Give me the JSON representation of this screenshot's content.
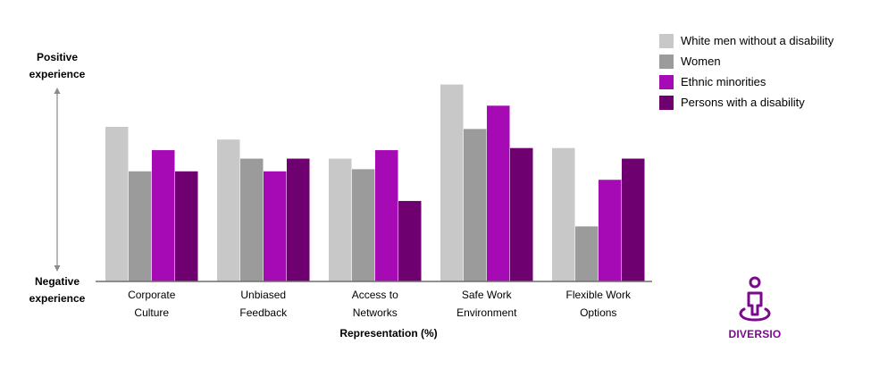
{
  "chart_data": {
    "type": "bar",
    "title": "",
    "xlabel": "Representation (%)",
    "ylabel_top": "Positive experience",
    "ylabel_bottom": "Negative experience",
    "categories": [
      [
        "Corporate",
        "Culture"
      ],
      [
        "Unbiased",
        "Feedback"
      ],
      [
        "Access to",
        "Networks"
      ],
      [
        "Safe Work",
        "Environment"
      ],
      [
        "Flexible Work",
        "Options"
      ]
    ],
    "ylim": [
      0,
      100
    ],
    "series": [
      {
        "name": "White men without a disability",
        "color": "#c8c8c8",
        "values": [
          73,
          67,
          58,
          93,
          63
        ]
      },
      {
        "name": "Women",
        "color": "#9b9b9b",
        "values": [
          52,
          58,
          53,
          72,
          26
        ]
      },
      {
        "name": "Ethnic minorities",
        "color": "#a50ab4",
        "values": [
          62,
          52,
          62,
          83,
          48
        ]
      },
      {
        "name": "Persons with a disability",
        "color": "#6e0070",
        "values": [
          52,
          58,
          38,
          63,
          58
        ]
      }
    ],
    "legend_position": "top-right",
    "grid": false
  },
  "branding": {
    "logo_text": "DIVERSIO",
    "logo_color": "#7a0a8c",
    "logo_icon": "person-on-platform-icon"
  }
}
